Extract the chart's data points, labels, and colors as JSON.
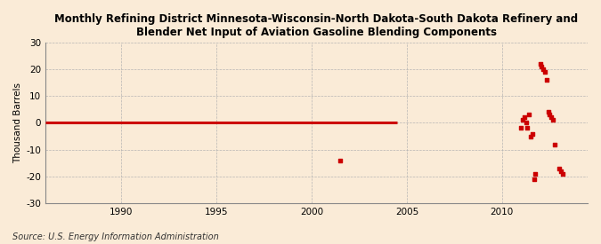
{
  "title": "Monthly Refining District Minnesota-Wisconsin-North Dakota-South Dakota Refinery and\nBlender Net Input of Aviation Gasoline Blending Components",
  "ylabel": "Thousand Barrels",
  "source": "Source: U.S. Energy Information Administration",
  "xlim": [
    1986.0,
    2014.5
  ],
  "ylim": [
    -30,
    30
  ],
  "yticks": [
    -30,
    -20,
    -10,
    0,
    10,
    20,
    30
  ],
  "xticks": [
    1990,
    1995,
    2000,
    2005,
    2010
  ],
  "background_color": "#faebd7",
  "plot_bg_color": "#faebd7",
  "line_color": "#cc0000",
  "scatter_color": "#cc0000",
  "line_data_x": [
    1986.0,
    2004.5
  ],
  "line_data_y": [
    0,
    0
  ],
  "scatter_data": [
    [
      2001.5,
      -14
    ],
    [
      2011.0,
      -2
    ],
    [
      2011.08,
      1
    ],
    [
      2011.16,
      2
    ],
    [
      2011.25,
      0
    ],
    [
      2011.33,
      -2
    ],
    [
      2011.42,
      3
    ],
    [
      2011.5,
      -5
    ],
    [
      2011.58,
      -4
    ],
    [
      2011.67,
      -21
    ],
    [
      2011.75,
      -19
    ],
    [
      2012.0,
      22
    ],
    [
      2012.08,
      21
    ],
    [
      2012.17,
      20
    ],
    [
      2012.25,
      19
    ],
    [
      2012.33,
      16
    ],
    [
      2012.42,
      4
    ],
    [
      2012.5,
      3
    ],
    [
      2012.58,
      2
    ],
    [
      2012.67,
      1
    ],
    [
      2012.75,
      -8
    ],
    [
      2013.0,
      -17
    ],
    [
      2013.08,
      -18
    ],
    [
      2013.17,
      -19
    ]
  ],
  "title_fontsize": 8.5,
  "axis_fontsize": 7.5,
  "source_fontsize": 7.0
}
